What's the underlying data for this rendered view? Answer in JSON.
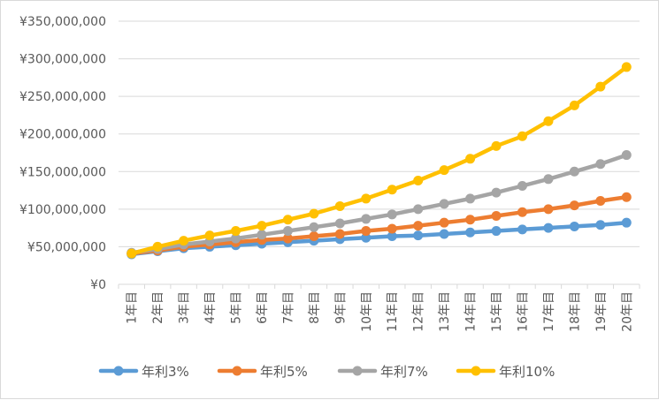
{
  "chart_data": {
    "type": "line",
    "title": "",
    "xlabel": "",
    "ylabel": "",
    "categories": [
      "1年目",
      "2年目",
      "3年目",
      "4年目",
      "5年目",
      "6年目",
      "7年目",
      "8年目",
      "9年目",
      "10年目",
      "11年目",
      "12年目",
      "13年目",
      "14年目",
      "15年目",
      "16年目",
      "17年目",
      "18年目",
      "19年目",
      "20年目"
    ],
    "ylim": [
      0,
      350000000
    ],
    "yticks": [
      0,
      50000000,
      100000000,
      150000000,
      200000000,
      250000000,
      300000000,
      350000000
    ],
    "ytick_labels": [
      "¥0",
      "¥50,000,000",
      "¥100,000,000",
      "¥150,000,000",
      "¥200,000,000",
      "¥250,000,000",
      "¥300,000,000",
      "¥350,000,000"
    ],
    "grid": true,
    "legend_position": "bottom",
    "series": [
      {
        "name": "年利3%",
        "color": "#5b9bd5",
        "values": [
          40000000,
          44000000,
          48000000,
          50000000,
          52000000,
          54000000,
          56000000,
          58000000,
          60000000,
          62000000,
          64000000,
          65000000,
          67000000,
          69000000,
          71000000,
          73000000,
          75000000,
          77000000,
          79000000,
          82000000
        ]
      },
      {
        "name": "年利5%",
        "color": "#ed7d31",
        "values": [
          41000000,
          45000000,
          50000000,
          53000000,
          56000000,
          59000000,
          61000000,
          64000000,
          67000000,
          71000000,
          74000000,
          78000000,
          82000000,
          86000000,
          91000000,
          96000000,
          100000000,
          105000000,
          111000000,
          116000000
        ]
      },
      {
        "name": "年利7%",
        "color": "#a5a5a5",
        "values": [
          42000000,
          47000000,
          53000000,
          57000000,
          61000000,
          66000000,
          71000000,
          76000000,
          81000000,
          87000000,
          93000000,
          100000000,
          107000000,
          114000000,
          122000000,
          131000000,
          140000000,
          150000000,
          160000000,
          172000000
        ]
      },
      {
        "name": "年利10%",
        "color": "#ffc000",
        "values": [
          41000000,
          50000000,
          58000000,
          65000000,
          71000000,
          78000000,
          86000000,
          94000000,
          104000000,
          114000000,
          126000000,
          138000000,
          152000000,
          167000000,
          184000000,
          197000000,
          217000000,
          238000000,
          263000000,
          289000000
        ]
      }
    ]
  }
}
